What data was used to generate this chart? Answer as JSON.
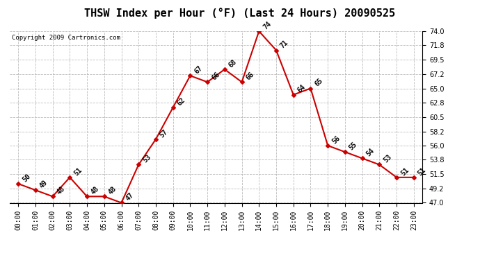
{
  "title": "THSW Index per Hour (°F) (Last 24 Hours) 20090525",
  "copyright": "Copyright 2009 Cartronics.com",
  "hours": [
    0,
    1,
    2,
    3,
    4,
    5,
    6,
    7,
    8,
    9,
    10,
    11,
    12,
    13,
    14,
    15,
    16,
    17,
    18,
    19,
    20,
    21,
    22,
    23
  ],
  "values": [
    50,
    49,
    48,
    51,
    48,
    48,
    47,
    53,
    57,
    62,
    67,
    66,
    68,
    66,
    74,
    71,
    64,
    65,
    56,
    55,
    54,
    53,
    51,
    51
  ],
  "xlabels": [
    "00:00",
    "01:00",
    "02:00",
    "03:00",
    "04:00",
    "05:00",
    "06:00",
    "07:00",
    "08:00",
    "09:00",
    "10:00",
    "11:00",
    "12:00",
    "13:00",
    "14:00",
    "15:00",
    "16:00",
    "17:00",
    "18:00",
    "19:00",
    "20:00",
    "21:00",
    "22:00",
    "23:00"
  ],
  "ylim": [
    47.0,
    74.0
  ],
  "yticks": [
    47.0,
    49.2,
    51.5,
    53.8,
    56.0,
    58.2,
    60.5,
    62.8,
    65.0,
    67.2,
    69.5,
    71.8,
    74.0
  ],
  "line_color": "#cc0000",
  "marker_color": "#cc0000",
  "bg_color": "#ffffff",
  "plot_bg_color": "#ffffff",
  "grid_color": "#bbbbbb",
  "title_fontsize": 11,
  "copyright_fontsize": 6.5,
  "label_fontsize": 7,
  "tick_fontsize": 7
}
